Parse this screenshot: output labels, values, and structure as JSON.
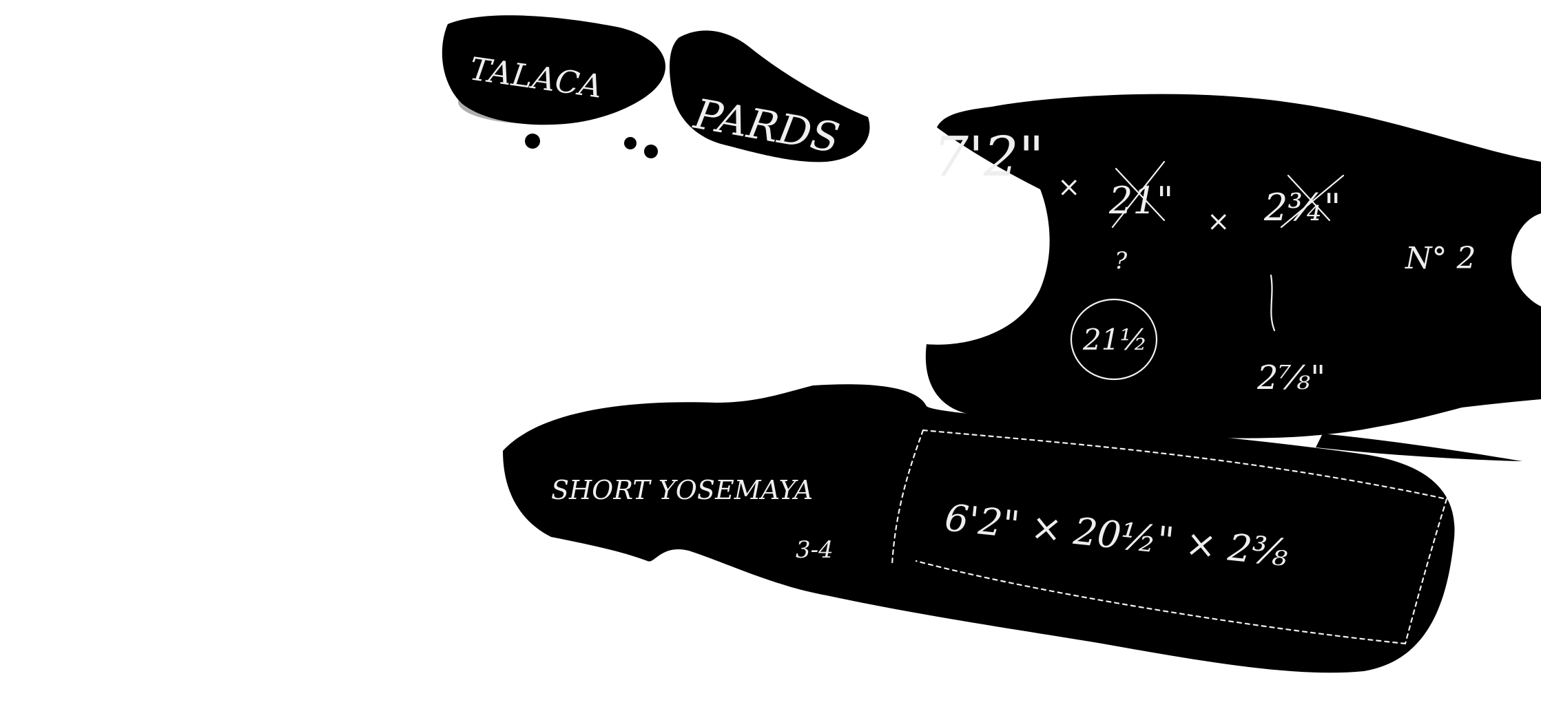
{
  "colors": {
    "background": "#ffffff",
    "ink": "#000000",
    "chalk": "#efefef",
    "smudge": "#9a9a9a"
  },
  "sketch": {
    "brand": {
      "word1": "TALACA",
      "word2": "PARDS"
    },
    "board1": {
      "length": "7'2\"",
      "sep1": "×",
      "width_struck": "21\"",
      "width_note": "?",
      "width_circled": "21½",
      "sep2": "×",
      "thick_struck": "2¾\"",
      "thick_revised": "2⅞\"",
      "count": "N° 2"
    },
    "board2": {
      "model_line1": "SHORT YOSEMAYA",
      "model_line2": "3-4",
      "dimensions": "6'2\" × 20½\" × 2⅜"
    }
  }
}
